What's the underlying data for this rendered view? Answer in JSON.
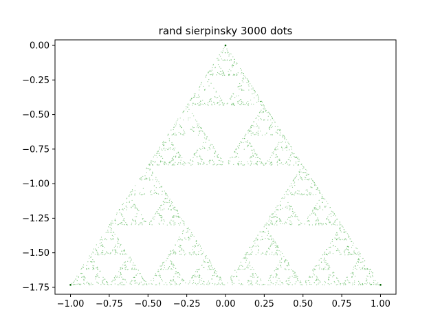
{
  "chart_data": {
    "type": "scatter",
    "title": "rand sierpinsky 3000 dots",
    "xlabel": "",
    "ylabel": "",
    "xlim": [
      -1.1,
      1.1
    ],
    "ylim": [
      -1.8,
      0.04
    ],
    "grid": false,
    "point_count": 3000,
    "point_color": "#2ca02c",
    "vertices": [
      {
        "x": 0.0,
        "y": 0.0
      },
      {
        "x": -1.0,
        "y": -1.732
      },
      {
        "x": 1.0,
        "y": -1.732
      }
    ],
    "x_ticks": [
      {
        "value": -1.0,
        "label": "−1.00"
      },
      {
        "value": -0.75,
        "label": "−0.75"
      },
      {
        "value": -0.5,
        "label": "−0.50"
      },
      {
        "value": -0.25,
        "label": "−0.25"
      },
      {
        "value": 0.0,
        "label": "0.00"
      },
      {
        "value": 0.25,
        "label": "0.25"
      },
      {
        "value": 0.5,
        "label": "0.50"
      },
      {
        "value": 0.75,
        "label": "0.75"
      },
      {
        "value": 1.0,
        "label": "1.00"
      }
    ],
    "y_ticks": [
      {
        "value": 0.0,
        "label": "0.00"
      },
      {
        "value": -0.25,
        "label": "−0.25"
      },
      {
        "value": -0.5,
        "label": "−0.50"
      },
      {
        "value": -0.75,
        "label": "−0.75"
      },
      {
        "value": -1.0,
        "label": "−1.00"
      },
      {
        "value": -1.25,
        "label": "−1.25"
      },
      {
        "value": -1.5,
        "label": "−1.50"
      },
      {
        "value": -1.75,
        "label": "−1.75"
      }
    ]
  }
}
